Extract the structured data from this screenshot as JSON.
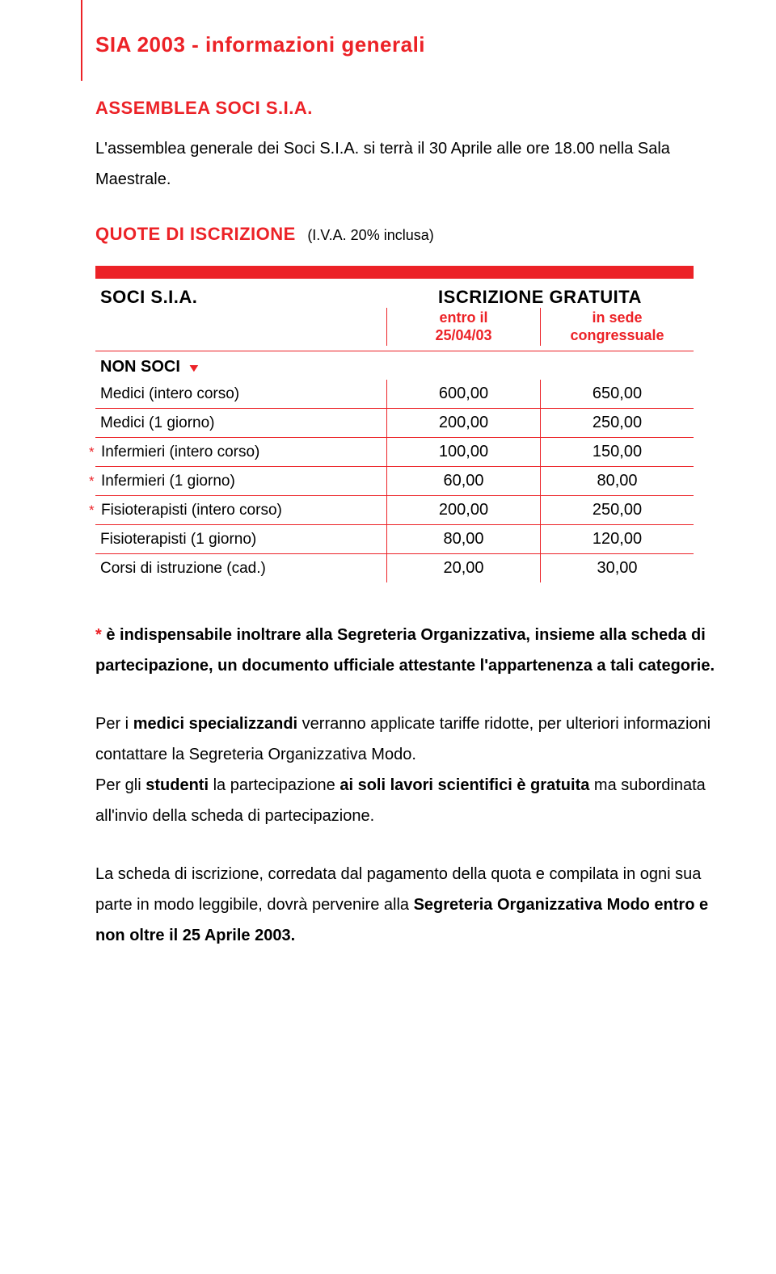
{
  "page": {
    "title": "SIA 2003 - informazioni generali"
  },
  "assemblea": {
    "heading": "ASSEMBLEA SOCI S.I.A.",
    "text": "L'assemblea generale dei Soci S.I.A. si terrà il 30 Aprile alle ore 18.00 nella Sala Maestrale."
  },
  "quote": {
    "heading": "QUOTE DI ISCRIZIONE",
    "note": "(I.V.A. 20% inclusa)"
  },
  "table": {
    "soci_label": "SOCI S.I.A.",
    "gratuita_label": "ISCRIZIONE GRATUITA",
    "col1_label_line1": "entro il",
    "col1_label_line2": "25/04/03",
    "col2_label_line1": "in sede",
    "col2_label_line2": "congressuale",
    "non_soci_label": "NON SOCI",
    "rows": [
      {
        "star": false,
        "label": "Medici (intero corso)",
        "v1": "600,00",
        "v2": "650,00"
      },
      {
        "star": false,
        "label": "Medici (1 giorno)",
        "v1": "200,00",
        "v2": "250,00"
      },
      {
        "star": true,
        "label": "Infermieri (intero corso)",
        "v1": "100,00",
        "v2": "150,00"
      },
      {
        "star": true,
        "label": "Infermieri (1 giorno)",
        "v1": "60,00",
        "v2": "80,00"
      },
      {
        "star": true,
        "label": "Fisioterapisti (intero corso)",
        "v1": "200,00",
        "v2": "250,00"
      },
      {
        "star": false,
        "label": "Fisioterapisti (1 giorno)",
        "v1": "80,00",
        "v2": "120,00"
      },
      {
        "star": false,
        "label": "Corsi di istruzione (cad.)",
        "v1": "20,00",
        "v2": "30,00"
      }
    ],
    "colors": {
      "accent": "#ec2227",
      "text": "#000000",
      "background": "#ffffff"
    }
  },
  "footnote": {
    "star": "*",
    "text_bold": " è indispensabile inoltrare alla Segreteria Organizzativa, insieme alla scheda di partecipazione, un documento ufficiale attestante l'appartenenza a tali categorie."
  },
  "para_medici": {
    "lead": "Per i ",
    "bold1": "medici specializzandi",
    "tail": " verranno applicate tariffe ridotte, per ulteriori informazioni contattare la Segreteria Organizzativa Modo."
  },
  "para_studenti": {
    "lead": "Per gli ",
    "bold1": "studenti",
    "mid": " la partecipazione ",
    "bold2": "ai soli lavori scientifici è gratuita",
    "tail": " ma subordinata all'invio della scheda di partecipazione."
  },
  "para_scheda": {
    "lead": "La scheda di iscrizione, corredata dal pagamento della quota e compilata in ogni sua parte in modo leggibile, dovrà pervenire alla ",
    "bold1": "Segreteria Organizzativa Modo entro e non oltre il 25 Aprile 2003."
  }
}
